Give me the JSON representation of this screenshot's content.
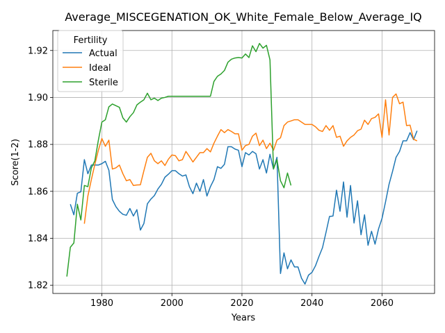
{
  "chart_data": {
    "type": "line",
    "title": "Average_MISCEGENATION_OK_White_Female_Below_Average_IQ",
    "xlabel": "Years",
    "ylabel": "Score(1-2)",
    "xlim": [
      1966,
      2075
    ],
    "ylim": [
      1.8165,
      1.9285
    ],
    "grid": true,
    "x_ticks": [
      1980,
      2000,
      2020,
      2040,
      2060
    ],
    "x_tick_labels": [
      "1980",
      "2000",
      "2020",
      "2040",
      "2060"
    ],
    "y_ticks": [
      1.82,
      1.84,
      1.86,
      1.88,
      1.9,
      1.92
    ],
    "y_tick_labels": [
      "1.82",
      "1.84",
      "1.86",
      "1.88",
      "1.90",
      "1.92"
    ],
    "legend": {
      "title": "Fertility",
      "position": "top-left"
    },
    "series": [
      {
        "name": "Actual",
        "color": "#1f77b4",
        "x": [
          1971,
          1972,
          1973,
          1974,
          1975,
          1976,
          1977,
          1978,
          1979,
          1980,
          1981,
          1982,
          1983,
          1984,
          1985,
          1986,
          1987,
          1988,
          1989,
          1990,
          1991,
          1992,
          1993,
          1994,
          1995,
          1996,
          1997,
          1998,
          1999,
          2000,
          2001,
          2002,
          2003,
          2004,
          2005,
          2006,
          2007,
          2008,
          2009,
          2010,
          2011,
          2012,
          2013,
          2014,
          2015,
          2016,
          2017,
          2018,
          2019,
          2020,
          2021,
          2022,
          2023,
          2024,
          2025,
          2026,
          2027,
          2028,
          2029,
          2030,
          2031,
          2032,
          2033,
          2034,
          2035,
          2036,
          2037,
          2038,
          2039,
          2040,
          2041,
          2042,
          2043,
          2044,
          2045,
          2046,
          2047,
          2048,
          2049,
          2050,
          2051,
          2052,
          2053,
          2054,
          2055,
          2056,
          2057,
          2058,
          2059,
          2060,
          2061,
          2062,
          2063,
          2064,
          2065,
          2066,
          2067,
          2068,
          2069,
          2070
        ],
        "values": [
          1.8545,
          1.85,
          1.8592,
          1.8598,
          1.8735,
          1.8675,
          1.8712,
          1.8712,
          1.8712,
          1.8718,
          1.8728,
          1.869,
          1.8565,
          1.8535,
          1.8515,
          1.8502,
          1.8498,
          1.8527,
          1.8495,
          1.8522,
          1.8435,
          1.8463,
          1.8547,
          1.8567,
          1.8582,
          1.861,
          1.863,
          1.866,
          1.8673,
          1.8688,
          1.8688,
          1.8675,
          1.8665,
          1.867,
          1.862,
          1.859,
          1.8635,
          1.86,
          1.865,
          1.858,
          1.862,
          1.865,
          1.8705,
          1.8698,
          1.8715,
          1.879,
          1.879,
          1.878,
          1.8775,
          1.8705,
          1.8765,
          1.8755,
          1.877,
          1.876,
          1.8695,
          1.8735,
          1.8678,
          1.8758,
          1.8695,
          1.8745,
          1.825,
          1.8338,
          1.827,
          1.8308,
          1.8278,
          1.8278,
          1.823,
          1.8205,
          1.8243,
          1.8255,
          1.8283,
          1.8323,
          1.836,
          1.8425,
          1.8493,
          1.8495,
          1.8605,
          1.8515,
          1.864,
          1.849,
          1.8625,
          1.8465,
          1.856,
          1.8415,
          1.85,
          1.837,
          1.843,
          1.8375,
          1.844,
          1.8485,
          1.8555,
          1.863,
          1.8685,
          1.8745,
          1.877,
          1.8815,
          1.8815,
          1.885,
          1.882,
          1.8858
        ]
      },
      {
        "name": "Ideal",
        "color": "#ff7f0e",
        "x": [
          1975,
          1976,
          1977,
          1978,
          1979,
          1980,
          1981,
          1982,
          1983,
          1984,
          1985,
          1986,
          1987,
          1988,
          1989,
          1990,
          1991,
          1992,
          1993,
          1994,
          1995,
          1996,
          1997,
          1998,
          1999,
          2000,
          2001,
          2002,
          2003,
          2004,
          2005,
          2006,
          2007,
          2008,
          2009,
          2010,
          2011,
          2012,
          2013,
          2014,
          2015,
          2016,
          2017,
          2018,
          2019,
          2020,
          2021,
          2022,
          2023,
          2024,
          2025,
          2026,
          2027,
          2028,
          2029,
          2030,
          2031,
          2032,
          2033,
          2034,
          2035,
          2036,
          2037,
          2038,
          2039,
          2040,
          2041,
          2042,
          2043,
          2044,
          2045,
          2046,
          2047,
          2048,
          2049,
          2050,
          2051,
          2052,
          2053,
          2054,
          2055,
          2056,
          2057,
          2058,
          2059,
          2060,
          2061,
          2062,
          2063,
          2064,
          2065,
          2066,
          2067,
          2068,
          2069,
          2070
        ],
        "values": [
          1.8462,
          1.858,
          1.865,
          1.8715,
          1.8775,
          1.8825,
          1.8792,
          1.8818,
          1.8695,
          1.87,
          1.8712,
          1.8675,
          1.8645,
          1.865,
          1.8625,
          1.8627,
          1.8628,
          1.8688,
          1.8745,
          1.8762,
          1.873,
          1.8718,
          1.873,
          1.871,
          1.8737,
          1.8755,
          1.8752,
          1.873,
          1.8735,
          1.877,
          1.8748,
          1.8725,
          1.8745,
          1.8765,
          1.8765,
          1.8782,
          1.8768,
          1.8805,
          1.8835,
          1.8863,
          1.885,
          1.8863,
          1.8855,
          1.8845,
          1.8845,
          1.8775,
          1.8795,
          1.88,
          1.8835,
          1.8848,
          1.8795,
          1.8818,
          1.8782,
          1.8805,
          1.8775,
          1.8818,
          1.8828,
          1.888,
          1.8895,
          1.89,
          1.8905,
          1.8905,
          1.8895,
          1.8885,
          1.8885,
          1.8885,
          1.8875,
          1.886,
          1.8855,
          1.888,
          1.886,
          1.888,
          1.883,
          1.8835,
          1.8792,
          1.8815,
          1.883,
          1.884,
          1.8858,
          1.8865,
          1.8903,
          1.8885,
          1.891,
          1.8915,
          1.893,
          1.883,
          1.899,
          1.884,
          1.9,
          1.9015,
          1.8973,
          1.898,
          1.888,
          1.8882,
          1.8822,
          1.8815
        ]
      },
      {
        "name": "Sterile",
        "color": "#2ca02c",
        "x": [
          1970,
          1971,
          1972,
          1973,
          1974,
          1975,
          1976,
          1977,
          1978,
          1979,
          1980,
          1981,
          1982,
          1983,
          1984,
          1985,
          1986,
          1987,
          1988,
          1989,
          1990,
          1991,
          1992,
          1993,
          1994,
          1995,
          1996,
          1997,
          1998,
          1999,
          2000,
          2001,
          2002,
          2003,
          2004,
          2005,
          2006,
          2007,
          2008,
          2009,
          2010,
          2011,
          2012,
          2013,
          2014,
          2015,
          2016,
          2017,
          2018,
          2019,
          2020,
          2021,
          2022,
          2023,
          2024,
          2025,
          2026,
          2027,
          2028,
          2029,
          2030,
          2031,
          2032,
          2033,
          2034
        ],
        "values": [
          1.8237,
          1.8362,
          1.838,
          1.8545,
          1.8478,
          1.8625,
          1.862,
          1.87,
          1.873,
          1.8818,
          1.8895,
          1.8905,
          1.896,
          1.8972,
          1.8965,
          1.8958,
          1.8913,
          1.8895,
          1.8918,
          1.8935,
          1.8968,
          1.898,
          1.899,
          1.9018,
          1.899,
          1.8997,
          1.8987,
          1.8997,
          1.9,
          1.9005,
          1.9005,
          1.9005,
          1.9005,
          1.9005,
          1.9005,
          1.9005,
          1.9005,
          1.9005,
          1.9005,
          1.9005,
          1.9005,
          1.9005,
          1.9068,
          1.909,
          1.91,
          1.9115,
          1.915,
          1.9163,
          1.9168,
          1.917,
          1.9168,
          1.9185,
          1.917,
          1.922,
          1.9195,
          1.923,
          1.921,
          1.9222,
          1.916,
          1.8695,
          1.8735,
          1.8645,
          1.8615,
          1.8678,
          1.8625
        ]
      }
    ]
  }
}
